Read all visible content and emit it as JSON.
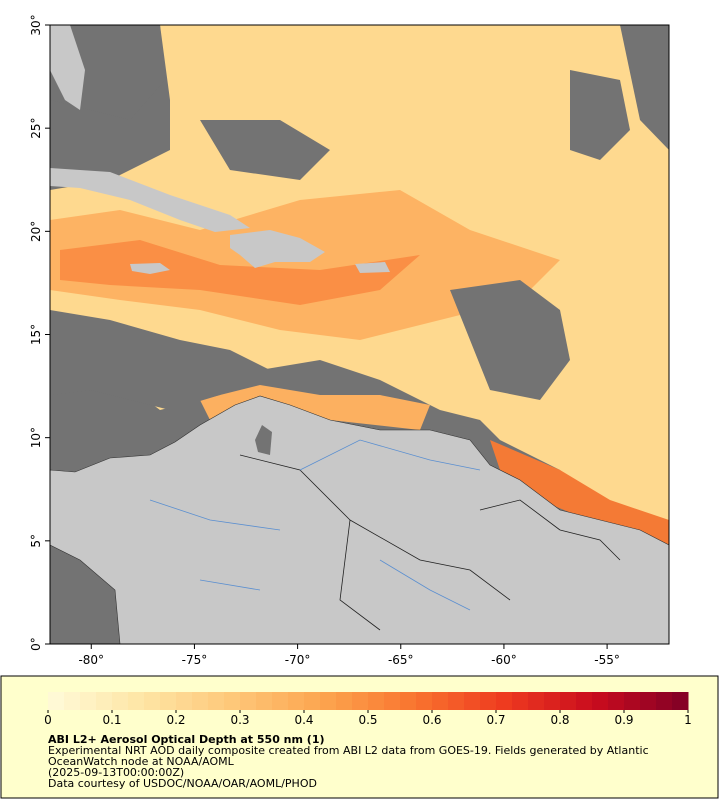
{
  "map": {
    "xlim": [
      -82,
      -52
    ],
    "ylim": [
      0,
      30
    ],
    "xticks": [
      {
        "value": -80,
        "label": "-80°"
      },
      {
        "value": -75,
        "label": "-75°"
      },
      {
        "value": -70,
        "label": "-70°"
      },
      {
        "value": -65,
        "label": "-65°"
      },
      {
        "value": -60,
        "label": "-60°"
      },
      {
        "value": -55,
        "label": "-55°"
      }
    ],
    "yticks": [
      {
        "value": 0,
        "label": "0°"
      },
      {
        "value": 5,
        "label": "5°"
      },
      {
        "value": 10,
        "label": "10°"
      },
      {
        "value": 15,
        "label": "15°"
      },
      {
        "value": 20,
        "label": "20°"
      },
      {
        "value": 25,
        "label": "25°"
      },
      {
        "value": 30,
        "label": "30°"
      }
    ]
  },
  "colorbar": {
    "lim": [
      0,
      1
    ],
    "ticks": [
      0,
      0.1,
      0.2,
      0.3,
      0.4,
      0.5,
      0.6,
      0.7,
      0.8,
      0.9,
      1
    ],
    "colors": [
      "#fffbd9",
      "#fee6a6",
      "#fec87a",
      "#fca54f",
      "#f9752f",
      "#ee3a1f",
      "#c80b1e",
      "#800026"
    ]
  },
  "caption": {
    "title": "ABI L2+ Aerosol Optical Depth at 550 nm (1)",
    "lines": [
      "Experimental NRT AOD daily composite created from ABI L2 data from GOES-19. Fields generated by Atlantic",
      "OceanWatch node at NOAA/AOML",
      "(2025-09-13T00:00:00Z)",
      "Data courtesy of USDOC/NOAA/OAR/AOML/PHOD"
    ]
  }
}
